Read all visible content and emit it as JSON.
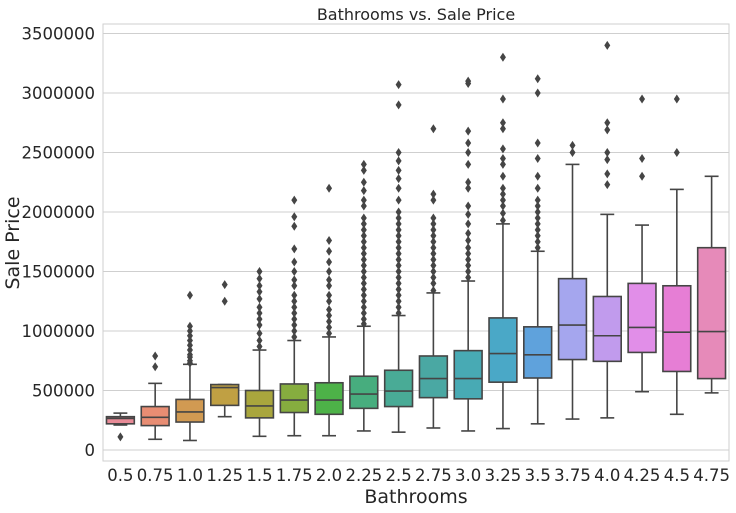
{
  "chart_data": {
    "type": "box",
    "title": "Bathrooms vs. Sale Price",
    "xlabel": "Bathrooms",
    "ylabel": "Sale Price",
    "ylim": [
      -80000,
      3560000
    ],
    "yticks": [
      0,
      500000,
      1000000,
      1500000,
      2000000,
      2500000,
      3000000,
      3500000
    ],
    "ytick_labels": [
      "0",
      "500000",
      "1000000",
      "1500000",
      "2000000",
      "2500000",
      "3000000",
      "3500000"
    ],
    "grid": true,
    "legend": "none",
    "categories": [
      "0.5",
      "0.75",
      "1.0",
      "1.25",
      "1.5",
      "1.75",
      "2.0",
      "2.25",
      "2.5",
      "2.75",
      "3.0",
      "3.25",
      "3.5",
      "3.75",
      "4.0",
      "4.25",
      "4.5",
      "4.75"
    ],
    "boxes": [
      {
        "whisker_low": 210000,
        "q1": 220000,
        "median": 265000,
        "q3": 280000,
        "whisker_high": 310000,
        "outliers": [
          110000
        ],
        "color": "#e88b97"
      },
      {
        "whisker_low": 90000,
        "q1": 205000,
        "median": 275000,
        "q3": 365000,
        "whisker_high": 560000,
        "outliers": [
          700000,
          790000
        ],
        "color": "#e88d73"
      },
      {
        "whisker_low": 80000,
        "q1": 235000,
        "median": 320000,
        "q3": 425000,
        "whisker_high": 720000,
        "outliers": [
          730000,
          750000,
          780000,
          800000,
          840000,
          880000,
          920000,
          960000,
          1000000,
          1040000,
          1300000
        ],
        "color": "#d19a52"
      },
      {
        "whisker_low": 280000,
        "q1": 375000,
        "median": 525000,
        "q3": 550000,
        "whisker_high": 550000,
        "outliers": [
          1250000,
          1390000
        ],
        "color": "#c0a043"
      },
      {
        "whisker_low": 115000,
        "q1": 270000,
        "median": 370000,
        "q3": 500000,
        "whisker_high": 840000,
        "outliers": [
          870000,
          920000,
          980000,
          1050000,
          1100000,
          1150000,
          1200000,
          1270000,
          1330000,
          1380000,
          1440000,
          1500000
        ],
        "color": "#a9a63d"
      },
      {
        "whisker_low": 120000,
        "q1": 315000,
        "median": 420000,
        "q3": 555000,
        "whisker_high": 920000,
        "outliers": [
          950000,
          1000000,
          1050000,
          1100000,
          1150000,
          1200000,
          1250000,
          1300000,
          1380000,
          1430000,
          1500000,
          1580000,
          1690000,
          1880000,
          1960000,
          2100000
        ],
        "color": "#86ad3f"
      },
      {
        "whisker_low": 120000,
        "q1": 300000,
        "median": 420000,
        "q3": 565000,
        "whisker_high": 950000,
        "outliers": [
          980000,
          1030000,
          1080000,
          1130000,
          1180000,
          1250000,
          1300000,
          1380000,
          1430000,
          1500000,
          1580000,
          1670000,
          1760000,
          2200000
        ],
        "color": "#4db248"
      },
      {
        "whisker_low": 160000,
        "q1": 350000,
        "median": 470000,
        "q3": 620000,
        "whisker_high": 1040000,
        "outliers": [
          1060000,
          1100000,
          1150000,
          1200000,
          1250000,
          1300000,
          1350000,
          1400000,
          1450000,
          1500000,
          1550000,
          1600000,
          1650000,
          1700000,
          1750000,
          1800000,
          1850000,
          1900000,
          1950000,
          2050000,
          2100000,
          2180000,
          2250000,
          2350000,
          2400000
        ],
        "color": "#47ad7e"
      },
      {
        "whisker_low": 150000,
        "q1": 365000,
        "median": 495000,
        "q3": 670000,
        "whisker_high": 1130000,
        "outliers": [
          1150000,
          1200000,
          1250000,
          1300000,
          1350000,
          1400000,
          1450000,
          1500000,
          1550000,
          1600000,
          1650000,
          1700000,
          1750000,
          1800000,
          1850000,
          1900000,
          1950000,
          2000000,
          2100000,
          2200000,
          2280000,
          2350000,
          2430000,
          2500000,
          2900000,
          3070000
        ],
        "color": "#49ab96"
      },
      {
        "whisker_low": 185000,
        "q1": 440000,
        "median": 600000,
        "q3": 790000,
        "whisker_high": 1320000,
        "outliers": [
          1340000,
          1400000,
          1450000,
          1500000,
          1550000,
          1600000,
          1650000,
          1700000,
          1750000,
          1800000,
          1850000,
          1900000,
          1950000,
          2100000,
          2150000,
          2700000
        ],
        "color": "#4aa8a3"
      },
      {
        "whisker_low": 160000,
        "q1": 430000,
        "median": 600000,
        "q3": 835000,
        "whisker_high": 1420000,
        "outliers": [
          1450000,
          1500000,
          1550000,
          1600000,
          1650000,
          1700000,
          1760000,
          1820000,
          1900000,
          1980000,
          2050000,
          2200000,
          2250000,
          2400000,
          2500000,
          2580000,
          2680000,
          3080000,
          3100000
        ],
        "color": "#48aab4"
      },
      {
        "whisker_low": 180000,
        "q1": 570000,
        "median": 810000,
        "q3": 1110000,
        "whisker_high": 1900000,
        "outliers": [
          1930000,
          1990000,
          2050000,
          2100000,
          2150000,
          2200000,
          2300000,
          2400000,
          2450000,
          2530000,
          2700000,
          2750000,
          2950000,
          3300000
        ],
        "color": "#4aa8c7"
      },
      {
        "whisker_low": 220000,
        "q1": 605000,
        "median": 800000,
        "q3": 1035000,
        "whisker_high": 1670000,
        "outliers": [
          1700000,
          1750000,
          1800000,
          1850000,
          1900000,
          1950000,
          2000000,
          2050000,
          2100000,
          2200000,
          2300000,
          2450000,
          2580000,
          3000000,
          3120000
        ],
        "color": "#5fa2dc"
      },
      {
        "whisker_low": 260000,
        "q1": 760000,
        "median": 1050000,
        "q3": 1440000,
        "whisker_high": 2400000,
        "outliers": [
          2500000,
          2560000
        ],
        "color": "#a5a6ee"
      },
      {
        "whisker_low": 270000,
        "q1": 745000,
        "median": 960000,
        "q3": 1290000,
        "whisker_high": 1980000,
        "outliers": [
          2230000,
          2320000,
          2440000,
          2500000,
          2690000,
          2750000,
          3400000
        ],
        "color": "#c19bed"
      },
      {
        "whisker_low": 490000,
        "q1": 820000,
        "median": 1030000,
        "q3": 1400000,
        "whisker_high": 1890000,
        "outliers": [
          2300000,
          2450000,
          2950000
        ],
        "color": "#e18ee8"
      },
      {
        "whisker_low": 300000,
        "q1": 660000,
        "median": 990000,
        "q3": 1380000,
        "whisker_high": 2190000,
        "outliers": [
          2500000,
          2950000
        ],
        "color": "#e67ed5"
      },
      {
        "whisker_low": 480000,
        "q1": 600000,
        "median": 995000,
        "q3": 1700000,
        "whisker_high": 2300000,
        "outliers": [],
        "color": "#e68ab9"
      }
    ]
  }
}
